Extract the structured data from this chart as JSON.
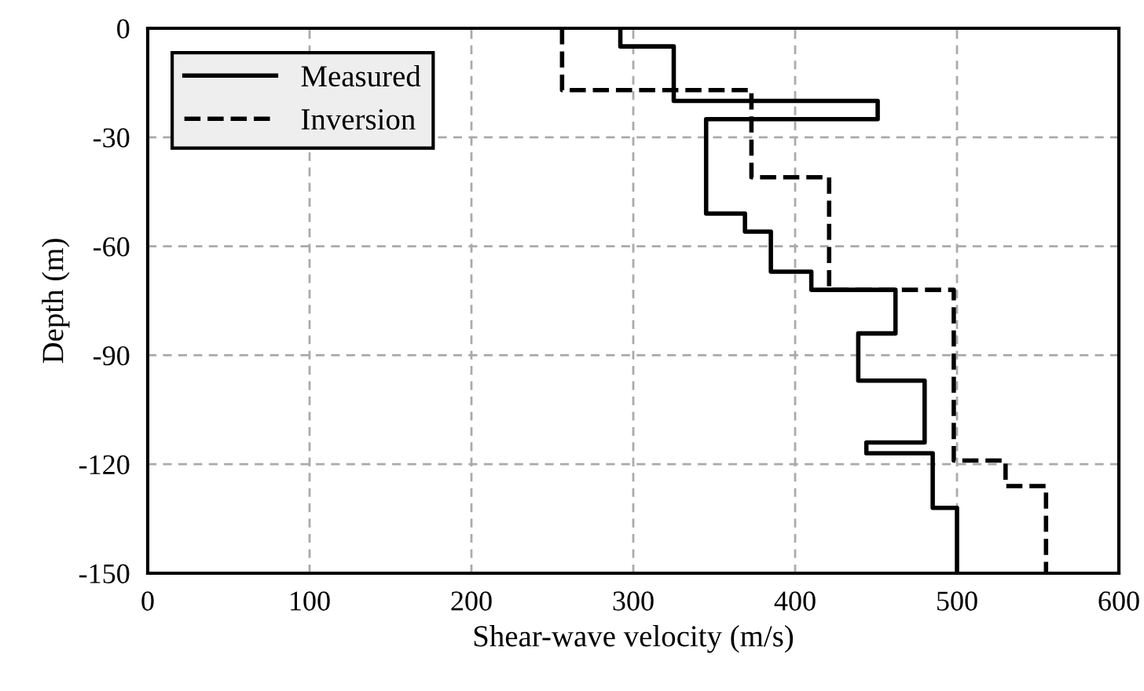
{
  "chart_data": {
    "type": "line",
    "xlabel": "Shear-wave velocity (m/s)",
    "ylabel": "Depth (m)",
    "xlim": [
      0,
      600
    ],
    "xticks": [
      0,
      100,
      200,
      300,
      400,
      500,
      600
    ],
    "ylim": [
      -150,
      0
    ],
    "yticks": [
      -150,
      -120,
      -90,
      -60,
      -30,
      0
    ],
    "grid": true,
    "legend": "top left",
    "series": [
      {
        "name": "Measured",
        "color": "#000000",
        "line_style": "solid",
        "x": [
          292,
          292,
          325,
          325,
          451,
          451,
          345,
          345,
          369,
          369,
          385,
          385,
          410,
          410,
          462,
          462,
          439,
          439,
          480,
          480,
          444,
          444,
          485,
          485,
          500,
          500
        ],
        "values": [
          0,
          -5,
          -5,
          -20,
          -20,
          -25,
          -25,
          -51,
          -51,
          -56,
          -56,
          -67,
          -67,
          -72,
          -72,
          -84,
          -84,
          -97,
          -97,
          -114,
          -114,
          -117,
          -117,
          -132,
          -132,
          -150
        ]
      },
      {
        "name": "Inversion",
        "color": "#000000",
        "line_style": "dashed",
        "x": [
          256,
          256,
          373,
          373,
          421,
          421,
          498,
          498,
          530,
          530,
          555,
          555
        ],
        "values": [
          0,
          -17,
          -17,
          -41,
          -41,
          -72,
          -72,
          -119,
          -119,
          -126,
          -126,
          -150
        ]
      }
    ]
  }
}
